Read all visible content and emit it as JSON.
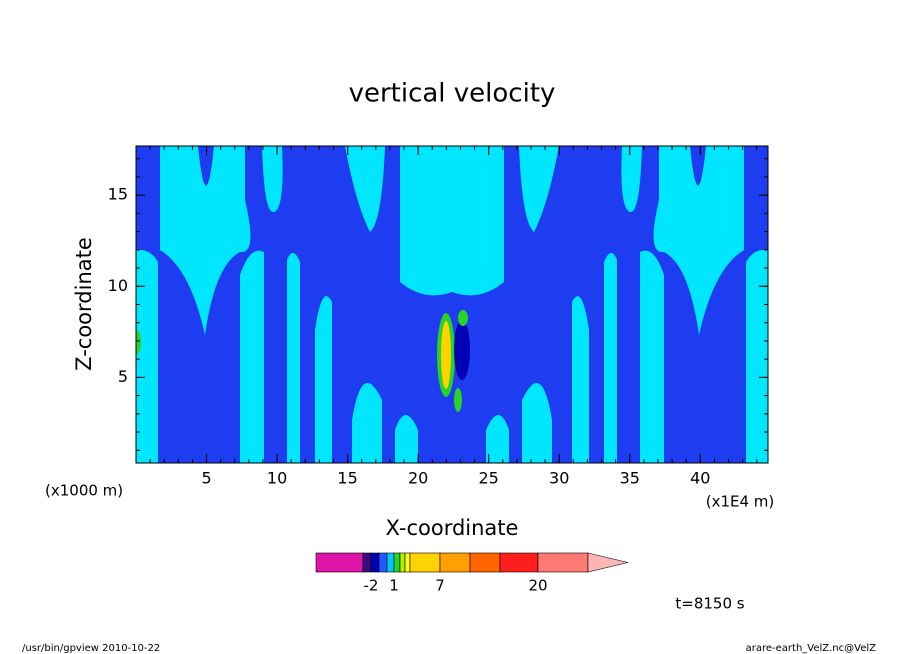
{
  "chart_data": {
    "type": "contour",
    "title": "vertical velocity",
    "x_label": "X-coordinate",
    "y_label": "Z-coordinate",
    "x_unit_left": "(x1000 m)",
    "x_unit_right": "(x1E4 m)",
    "xlim": [
      0,
      44.8
    ],
    "ylim": [
      0.3,
      17.7
    ],
    "xticks": [
      5,
      10,
      15,
      20,
      25,
      30,
      35,
      40
    ],
    "yticks": [
      5,
      10,
      15
    ],
    "minor_step": 1,
    "colorbar": {
      "colors": [
        "#e014a8",
        "#3c0a80",
        "#0000b4",
        "#1e5aff",
        "#00c8ff",
        "#28d228",
        "#b4f000",
        "#ffff00",
        "#ffd200",
        "#ffa000",
        "#ff6400",
        "#ff1e1e",
        "#ff7a74",
        "#ffb4b4"
      ],
      "ticks": [
        -2,
        1,
        7,
        20
      ]
    },
    "time_label": "t=8150 s"
  },
  "footer": {
    "left": "/usr/bin/gpview   2010-10-22",
    "right": "arare-earth_VelZ.nc@VelZ"
  }
}
